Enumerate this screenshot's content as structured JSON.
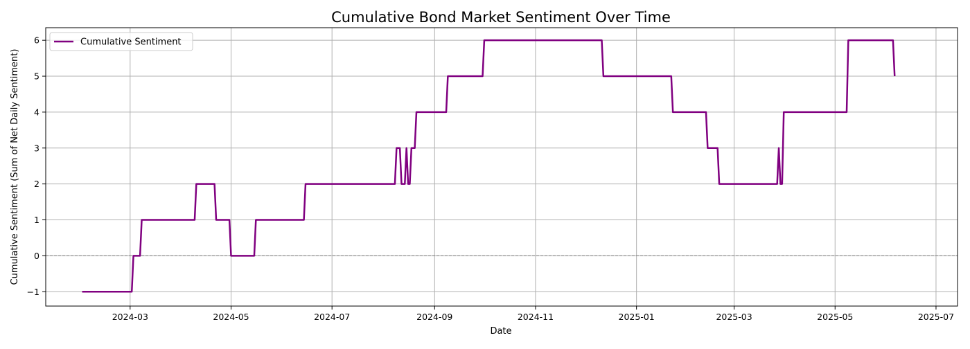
{
  "chart_data": {
    "type": "line",
    "title": "Cumulative Bond Market Sentiment Over Time",
    "xlabel": "Date",
    "ylabel": "Cumulative Sentiment (Sum of Net Daily Sentiment)",
    "xlim": [
      "2024-01-10",
      "2025-07-14"
    ],
    "ylim": [
      -1.4,
      6.35
    ],
    "x_ticks": [
      "2024-03",
      "2024-05",
      "2024-07",
      "2024-09",
      "2024-11",
      "2025-01",
      "2025-03",
      "2025-05",
      "2025-07"
    ],
    "y_ticks": [
      -1,
      0,
      1,
      2,
      3,
      4,
      5,
      6
    ],
    "y_tick_labels": [
      "−1",
      "0",
      "1",
      "2",
      "3",
      "4",
      "5",
      "6"
    ],
    "grid": true,
    "reference_line": {
      "y": 0,
      "style": "dashed",
      "color": "#808080"
    },
    "legend": {
      "position": "top-left"
    },
    "series": [
      {
        "name": "Cumulative Sentiment",
        "color": "#800080",
        "points": [
          [
            "2024-02-01",
            -1
          ],
          [
            "2024-03-02",
            -1
          ],
          [
            "2024-03-03",
            0
          ],
          [
            "2024-03-07",
            0
          ],
          [
            "2024-03-08",
            1
          ],
          [
            "2024-04-09",
            1
          ],
          [
            "2024-04-10",
            2
          ],
          [
            "2024-04-21",
            2
          ],
          [
            "2024-04-22",
            1
          ],
          [
            "2024-04-30",
            1
          ],
          [
            "2024-05-01",
            0
          ],
          [
            "2024-05-15",
            0
          ],
          [
            "2024-05-16",
            1
          ],
          [
            "2024-06-14",
            1
          ],
          [
            "2024-06-15",
            2
          ],
          [
            "2024-08-08",
            2
          ],
          [
            "2024-08-09",
            3
          ],
          [
            "2024-08-11",
            3
          ],
          [
            "2024-08-12",
            2
          ],
          [
            "2024-08-14",
            2
          ],
          [
            "2024-08-15",
            3
          ],
          [
            "2024-08-16",
            2
          ],
          [
            "2024-08-17",
            2
          ],
          [
            "2024-08-18",
            3
          ],
          [
            "2024-08-20",
            3
          ],
          [
            "2024-08-21",
            4
          ],
          [
            "2024-09-08",
            4
          ],
          [
            "2024-09-09",
            5
          ],
          [
            "2024-09-30",
            5
          ],
          [
            "2024-10-01",
            6
          ],
          [
            "2024-12-11",
            6
          ],
          [
            "2024-12-12",
            5
          ],
          [
            "2025-01-22",
            5
          ],
          [
            "2025-01-23",
            4
          ],
          [
            "2025-02-12",
            4
          ],
          [
            "2025-02-13",
            3
          ],
          [
            "2025-02-19",
            3
          ],
          [
            "2025-02-20",
            2
          ],
          [
            "2025-03-27",
            2
          ],
          [
            "2025-03-28",
            3
          ],
          [
            "2025-03-29",
            2
          ],
          [
            "2025-03-30",
            2
          ],
          [
            "2025-03-31",
            4
          ],
          [
            "2025-05-08",
            4
          ],
          [
            "2025-05-09",
            6
          ],
          [
            "2025-06-05",
            6
          ],
          [
            "2025-06-06",
            5
          ]
        ]
      }
    ]
  }
}
